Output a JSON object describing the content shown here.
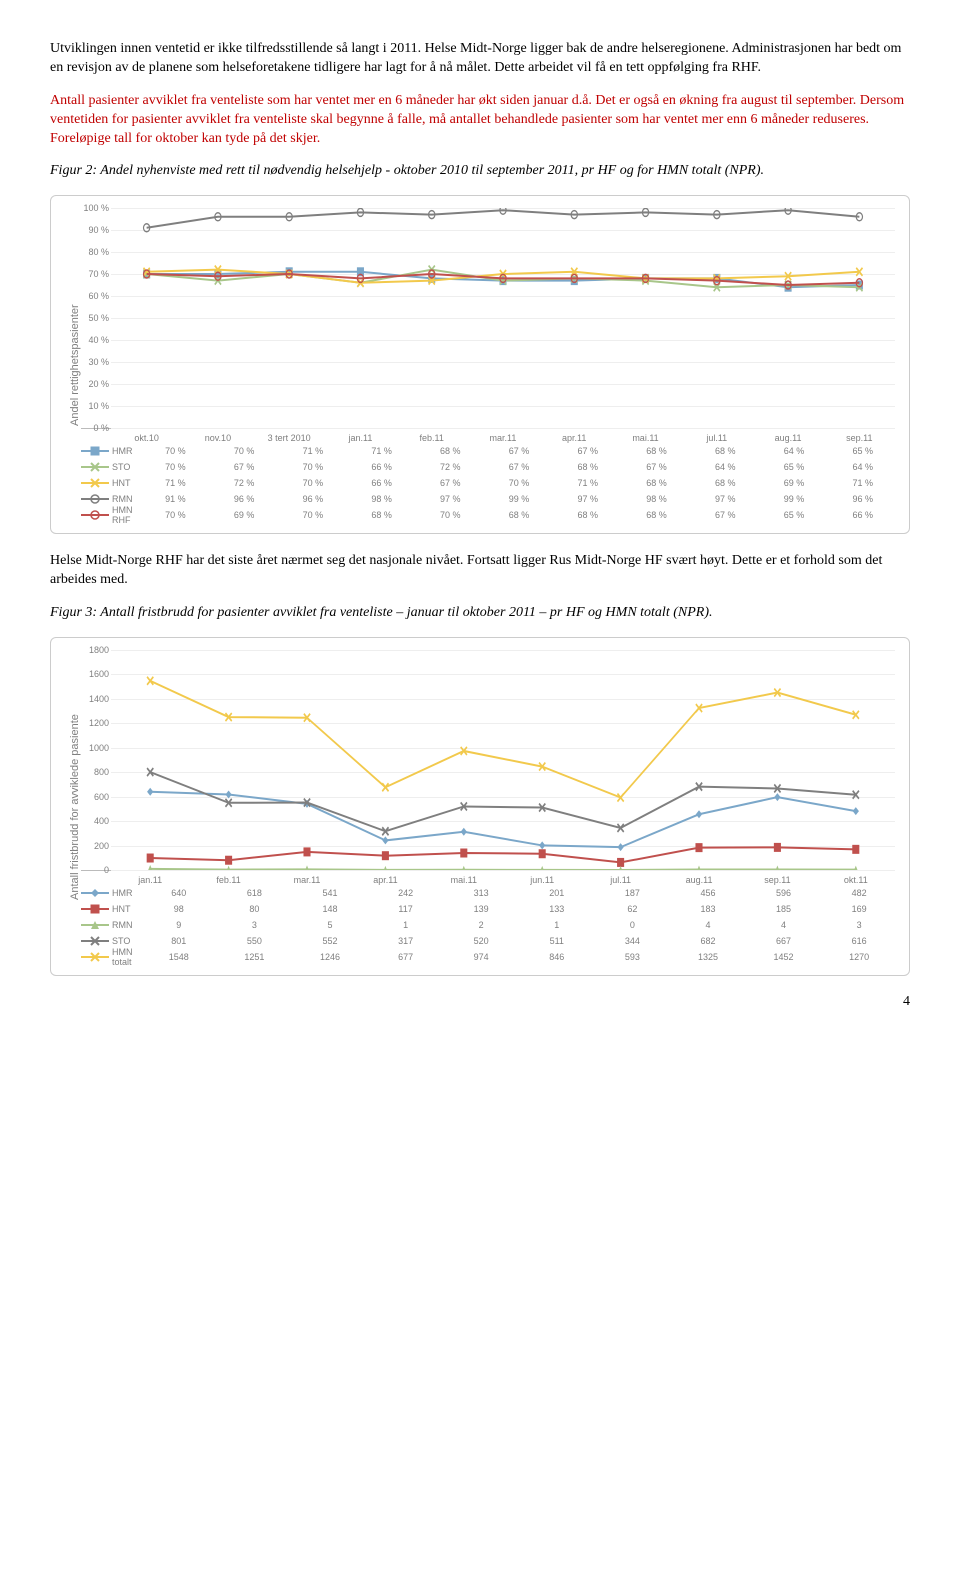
{
  "paragraphs": {
    "p1": "Utviklingen innen ventetid er ikke tilfredsstillende så langt i 2011. Helse Midt-Norge ligger bak de andre helseregionene. Administrasjonen har bedt om en revisjon av de planene som helseforetakene tidligere har lagt for å nå målet. Dette arbeidet vil få en tett oppfølging fra RHF.",
    "p2": "Antall pasienter avviklet fra venteliste som har ventet mer en 6 måneder har økt siden januar d.å. Det er også en økning fra august til september. Dersom ventetiden for pasienter avviklet fra venteliste skal begynne å falle, må antallet behandlede pasienter som har ventet mer enn 6 måneder reduseres. Foreløpige tall for oktober kan tyde på det skjer.",
    "fig2_caption": "Figur 2: Andel nyhenviste med rett til nødvendig helsehjelp - oktober 2010 til september 2011, pr HF og for HMN totalt (NPR).",
    "p3": "Helse Midt-Norge RHF har det siste året nærmet seg det nasjonale nivået. Fortsatt ligger Rus Midt-Norge HF svært høyt. Dette er et forhold som det arbeides med.",
    "fig3_caption": "Figur 3: Antall fristbrudd for pasienter avviklet fra venteliste – januar til oktober 2011 – pr HF og HMN totalt (NPR)."
  },
  "chart2": {
    "y_label": "Andel rettighetspasienter",
    "y_ticks": [
      "0 %",
      "10 %",
      "20 %",
      "30 %",
      "40 %",
      "50 %",
      "60 %",
      "70 %",
      "80 %",
      "90 %",
      "100 %"
    ],
    "y_max": 100,
    "x_labels": [
      "okt.10",
      "nov.10",
      "3 tert 2010",
      "jan.11",
      "feb.11",
      "mar.11",
      "apr.11",
      "mai.11",
      "jul.11",
      "aug.11",
      "sep.11"
    ],
    "series": [
      {
        "name": "HMR",
        "color": "#7ba7c9",
        "marker": "square",
        "values": [
          70,
          70,
          71,
          71,
          68,
          67,
          67,
          68,
          68,
          64,
          65
        ]
      },
      {
        "name": "STO",
        "color": "#a8c68a",
        "marker": "x",
        "values": [
          70,
          67,
          70,
          66,
          72,
          67,
          68,
          67,
          64,
          65,
          64
        ]
      },
      {
        "name": "HNT",
        "color": "#f2c94c",
        "marker": "x",
        "values": [
          71,
          72,
          70,
          66,
          67,
          70,
          71,
          68,
          68,
          69,
          71
        ]
      },
      {
        "name": "RMN",
        "color": "#7f7f7f",
        "marker": "circle",
        "values": [
          91,
          96,
          96,
          98,
          97,
          99,
          97,
          98,
          97,
          99,
          96
        ]
      },
      {
        "name": "HMN RHF",
        "color": "#c0504d",
        "marker": "circle",
        "values": [
          70,
          69,
          70,
          68,
          70,
          68,
          68,
          68,
          67,
          65,
          66
        ]
      }
    ]
  },
  "chart3": {
    "y_label": "Antall fristbrudd for avviklede pasiente",
    "y_ticks": [
      "0",
      "200",
      "400",
      "600",
      "800",
      "1000",
      "1200",
      "1400",
      "1600",
      "1800"
    ],
    "y_max": 1800,
    "x_labels": [
      "jan.11",
      "feb.11",
      "mar.11",
      "apr.11",
      "mai.11",
      "jun.11",
      "jul.11",
      "aug.11",
      "sep.11",
      "okt.11"
    ],
    "series": [
      {
        "name": "HMR",
        "color": "#7ba7c9",
        "marker": "diamond",
        "values": [
          640,
          618,
          541,
          242,
          313,
          201,
          187,
          456,
          596,
          482
        ]
      },
      {
        "name": "HNT",
        "color": "#c0504d",
        "marker": "square",
        "values": [
          98,
          80,
          148,
          117,
          139,
          133,
          62,
          183,
          185,
          169
        ]
      },
      {
        "name": "RMN",
        "color": "#a8c68a",
        "marker": "triangle",
        "values": [
          9,
          3,
          5,
          1,
          2,
          1,
          0,
          4,
          4,
          3
        ]
      },
      {
        "name": "STO",
        "color": "#7f7f7f",
        "marker": "x",
        "values": [
          801,
          550,
          552,
          317,
          520,
          511,
          344,
          682,
          667,
          616
        ]
      },
      {
        "name": "HMN totalt",
        "color": "#f2c94c",
        "marker": "x",
        "values": [
          1548,
          1251,
          1246,
          677,
          974,
          846,
          593,
          1325,
          1452,
          1270
        ]
      }
    ]
  },
  "page_number": "4"
}
